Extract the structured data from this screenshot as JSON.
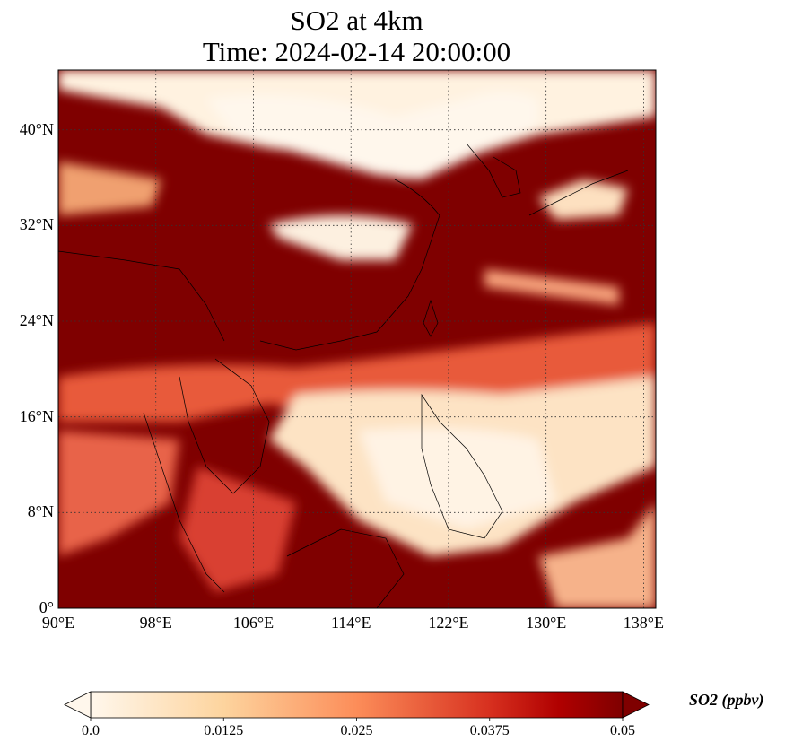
{
  "title": {
    "line1": "SO2 at 4km",
    "line2": "Time: 2024-02-14 20:00:00"
  },
  "chart_data": {
    "type": "heatmap",
    "title": "SO2 at 4km\nTime: 2024-02-14 20:00:00",
    "variable": "SO2",
    "units": "ppbv",
    "lon_range": [
      90,
      139
    ],
    "lat_range": [
      0,
      45
    ],
    "x_ticks": [
      "90°E",
      "98°E",
      "106°E",
      "114°E",
      "122°E",
      "130°E",
      "138°E"
    ],
    "x_tick_values": [
      90,
      98,
      106,
      114,
      122,
      130,
      138
    ],
    "y_ticks": [
      "0°",
      "8°N",
      "16°N",
      "24°N",
      "32°N",
      "40°N"
    ],
    "y_tick_values": [
      0,
      8,
      16,
      24,
      32,
      40
    ],
    "grid": true,
    "colorbar": {
      "label": "SO2 (ppbv)",
      "min": 0.0,
      "max": 0.05,
      "ticks": [
        "0.0",
        "0.0125",
        "0.025",
        "0.0375",
        "0.05"
      ],
      "tick_values": [
        0,
        0.0125,
        0.025,
        0.0375,
        0.05
      ],
      "extend": "both",
      "colormap": [
        "#fff7ec",
        "#fdd49e",
        "#fc8d59",
        "#d7301f",
        "#7f0000"
      ]
    }
  }
}
